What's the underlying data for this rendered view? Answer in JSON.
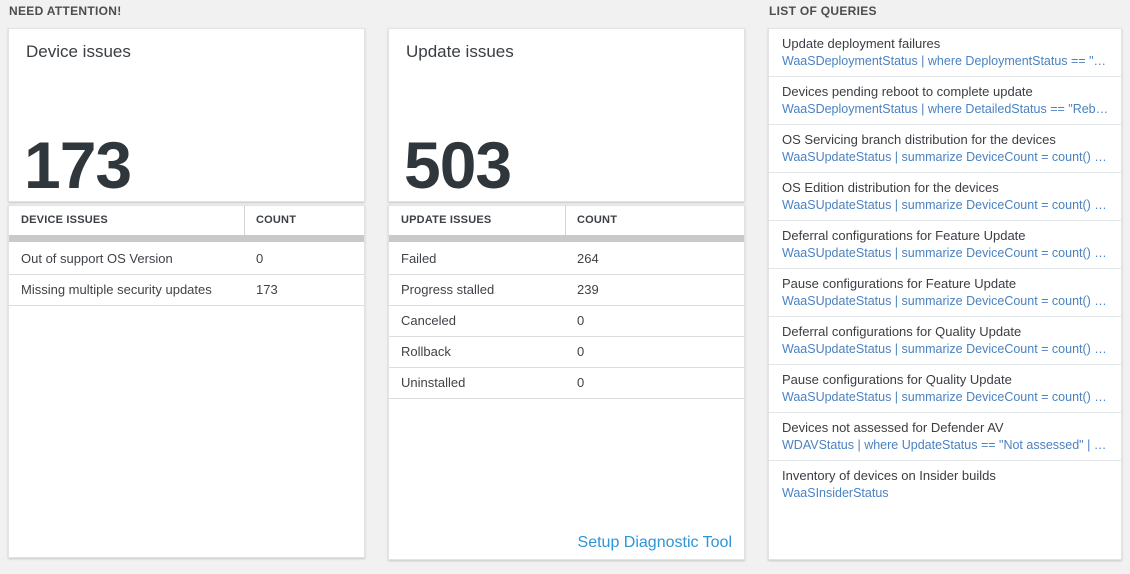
{
  "sections": {
    "need_attention": {
      "label": "NEED ATTENTION!"
    },
    "list_of_queries": {
      "label": "LIST OF QUERIES"
    }
  },
  "tiles": {
    "device": {
      "title": "Device issues",
      "value": "173"
    },
    "update": {
      "title": "Update issues",
      "value": "503"
    }
  },
  "tables": {
    "device": {
      "headers": [
        "DEVICE ISSUES",
        "COUNT"
      ],
      "rows": [
        {
          "name": "Out of support OS Version",
          "count": "0"
        },
        {
          "name": "Missing multiple security updates",
          "count": "173"
        }
      ]
    },
    "update": {
      "headers": [
        "UPDATE ISSUES",
        "COUNT"
      ],
      "rows": [
        {
          "name": "Failed",
          "count": "264"
        },
        {
          "name": "Progress stalled",
          "count": "239"
        },
        {
          "name": "Canceled",
          "count": "0"
        },
        {
          "name": "Rollback",
          "count": "0"
        },
        {
          "name": "Uninstalled",
          "count": "0"
        }
      ],
      "footer_link": "Setup Diagnostic Tool"
    }
  },
  "queries": {
    "items": [
      {
        "title": "Update deployment failures",
        "query": "WaaSDeploymentStatus | where DeploymentStatus == \"Failed\" |..."
      },
      {
        "title": "Devices pending reboot to complete update",
        "query": "WaaSDeploymentStatus | where DetailedStatus == \"Reboot pend..."
      },
      {
        "title": "OS Servicing branch distribution for the devices",
        "query": "WaaSUpdateStatus | summarize DeviceCount = count() by OSSer..."
      },
      {
        "title": "OS Edition distribution for the devices",
        "query": "WaaSUpdateStatus | summarize DeviceCount = count() by OSEdit..."
      },
      {
        "title": "Deferral configurations for Feature Update",
        "query": "WaaSUpdateStatus | summarize DeviceCount = count() by Featur..."
      },
      {
        "title": "Pause configurations for Feature Update",
        "query": "WaaSUpdateStatus | summarize DeviceCount = count() by Featur..."
      },
      {
        "title": "Deferral configurations for Quality Update",
        "query": "WaaSUpdateStatus | summarize DeviceCount = count() by Qualit..."
      },
      {
        "title": "Pause configurations for Quality Update",
        "query": "WaaSUpdateStatus | summarize DeviceCount = count() by Qualit..."
      },
      {
        "title": "Devices not assessed for Defender AV",
        "query": "WDAVStatus | where UpdateStatus == \"Not assessed\" | render ta..."
      },
      {
        "title": "Inventory of devices on Insider builds",
        "query": "WaaSInsiderStatus"
      }
    ]
  },
  "colors": {
    "page_background": "#f1f1f1",
    "panel_background": "#ffffff",
    "query_link_blue": "#4a82c2",
    "setup_link_blue": "#2e95d8",
    "big_number": "#2f363c",
    "scroll_track_gray": "#c9c9c9"
  }
}
